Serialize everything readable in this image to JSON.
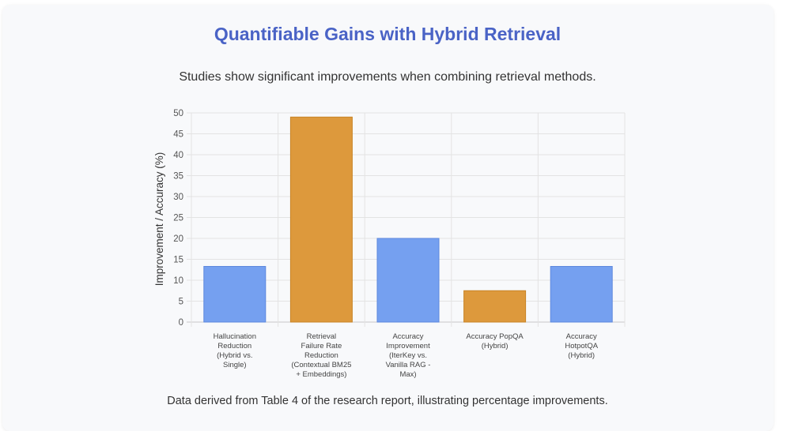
{
  "header": {
    "title": "Quantifiable Gains with Hybrid Retrieval",
    "subtitle": "Studies show significant improvements when combining retrieval methods."
  },
  "footer": {
    "caption": "Data derived from Table 4 of the research report, illustrating percentage improvements."
  },
  "colors": {
    "blue_bar": "#75a0f0",
    "orange_bar": "#dd993c",
    "grid": "#e3e3e3",
    "title": "#4a63c6"
  },
  "chart_data": {
    "type": "bar",
    "title": "",
    "xlabel": "",
    "ylabel": "Improvement / Accuracy (%)",
    "ylim": [
      0,
      50
    ],
    "yticks": [
      0,
      5,
      10,
      15,
      20,
      25,
      30,
      35,
      40,
      45,
      50
    ],
    "grid": true,
    "categories": [
      [
        "Hallucination",
        "Reduction",
        "(Hybrid vs.",
        "Single)"
      ],
      [
        "Retrieval",
        "Failure Rate",
        "Reduction",
        "(Contextual BM25",
        "+ Embeddings)"
      ],
      [
        "Accuracy",
        "Improvement",
        "(IterKey vs.",
        "Vanilla RAG -",
        "Max)"
      ],
      [
        "Accuracy PopQA",
        "(Hybrid)"
      ],
      [
        "Accuracy",
        "HotpotQA",
        "(Hybrid)"
      ]
    ],
    "values": [
      13.3,
      49,
      20,
      7.5,
      13.3
    ],
    "bar_colors": [
      "#75a0f0",
      "#dd993c",
      "#75a0f0",
      "#dd993c",
      "#75a0f0"
    ]
  }
}
